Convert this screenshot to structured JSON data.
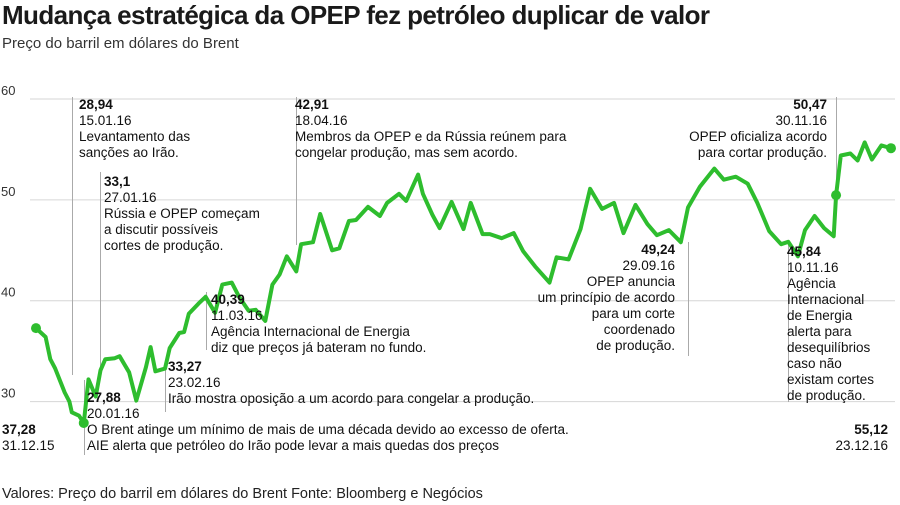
{
  "title": "Mudança estratégica da OPEP fez petróleo duplicar de valor",
  "subtitle": "Preço do barril em dólares do Brent",
  "footer": "Valores: Preço do barril em dólares do Brent Fonte: Bloomberg  e Negócios",
  "colors": {
    "line": "#2ebd2e",
    "grid": "#d6d6d6",
    "marker": "#aaaaaa",
    "text": "#111111"
  },
  "chart_data": {
    "type": "line",
    "title": "Mudança estratégica da OPEP fez petróleo duplicar de valor",
    "subtitle": "Preço do barril em dólares do Brent",
    "ylabel": "",
    "xlabel": "",
    "ylim": [
      25,
      60
    ],
    "yticks": [
      "30",
      "40",
      "50",
      "60"
    ],
    "xlim": [
      "2015-12-31",
      "2016-12-23"
    ],
    "grid": true,
    "series": [
      {
        "x": [
          "2015-12-31",
          "2016-01-04",
          "2016-01-06",
          "2016-01-08",
          "2016-01-12",
          "2016-01-14",
          "2016-01-15",
          "2016-01-18",
          "2016-01-20",
          "2016-01-22",
          "2016-01-25",
          "2016-01-27",
          "2016-01-29",
          "2016-02-02",
          "2016-02-04",
          "2016-02-08",
          "2016-02-11",
          "2016-02-15",
          "2016-02-17",
          "2016-02-19",
          "2016-02-23",
          "2016-02-25",
          "2016-02-29",
          "2016-03-02",
          "2016-03-04",
          "2016-03-08",
          "2016-03-11",
          "2016-03-15",
          "2016-03-18",
          "2016-03-22",
          "2016-03-25",
          "2016-03-29",
          "2016-04-01",
          "2016-04-05",
          "2016-04-08",
          "2016-04-11",
          "2016-04-14",
          "2016-04-18",
          "2016-04-20",
          "2016-04-25",
          "2016-04-28",
          "2016-05-03",
          "2016-05-06",
          "2016-05-10",
          "2016-05-13",
          "2016-05-18",
          "2016-05-23",
          "2016-05-26",
          "2016-05-31",
          "2016-06-03",
          "2016-06-08",
          "2016-06-10",
          "2016-06-14",
          "2016-06-17",
          "2016-06-22",
          "2016-06-27",
          "2016-06-30",
          "2016-07-05",
          "2016-07-08",
          "2016-07-13",
          "2016-07-18",
          "2016-07-22",
          "2016-07-27",
          "2016-08-02",
          "2016-08-05",
          "2016-08-10",
          "2016-08-15",
          "2016-08-19",
          "2016-08-24",
          "2016-08-29",
          "2016-09-02",
          "2016-09-07",
          "2016-09-12",
          "2016-09-16",
          "2016-09-21",
          "2016-09-26",
          "2016-09-29",
          "2016-10-04",
          "2016-10-10",
          "2016-10-14",
          "2016-10-19",
          "2016-10-24",
          "2016-10-28",
          "2016-11-02",
          "2016-11-07",
          "2016-11-10",
          "2016-11-14",
          "2016-11-17",
          "2016-11-21",
          "2016-11-25",
          "2016-11-29",
          "2016-11-30",
          "2016-12-02",
          "2016-12-06",
          "2016-12-09",
          "2016-12-12",
          "2016-12-15",
          "2016-12-19",
          "2016-12-23"
        ],
        "values": [
          37.28,
          36.4,
          34.2,
          33.3,
          30.9,
          30.0,
          28.94,
          28.6,
          27.88,
          32.2,
          30.5,
          33.1,
          34.2,
          34.3,
          34.5,
          32.9,
          30.1,
          33.4,
          35.4,
          33.0,
          33.27,
          35.3,
          36.8,
          36.9,
          38.7,
          39.7,
          40.39,
          38.8,
          41.6,
          41.8,
          40.4,
          39.0,
          39.1,
          38.0,
          41.6,
          42.6,
          44.4,
          42.91,
          45.6,
          45.8,
          48.6,
          45.0,
          45.2,
          47.9,
          48.0,
          49.3,
          48.4,
          49.7,
          50.6,
          49.9,
          52.5,
          50.6,
          48.5,
          47.2,
          49.8,
          47.1,
          49.7,
          46.6,
          46.6,
          46.2,
          46.7,
          44.9,
          43.4,
          41.8,
          44.3,
          44.1,
          47.1,
          51.1,
          49.1,
          49.7,
          46.7,
          49.5,
          47.6,
          46.5,
          47.0,
          45.8,
          49.24,
          51.3,
          53.1,
          52.0,
          52.3,
          51.6,
          49.7,
          46.9,
          45.6,
          45.84,
          44.4,
          47.0,
          48.4,
          47.2,
          46.4,
          50.47,
          54.4,
          54.6,
          53.9,
          55.7,
          54.0,
          55.4,
          55.12
        ]
      }
    ],
    "annotations": [
      {
        "value": "37,28",
        "date": "31.12.15",
        "lines": []
      },
      {
        "value": "28,94",
        "date": "15.01.16",
        "lines": [
          "Levantamento das",
          "sanções ao Irão."
        ]
      },
      {
        "value": "27,88",
        "date": "20.01.16",
        "lines": [
          "O Brent atinge um mínimo de mais de uma década devido ao excesso de oferta.",
          "AIE alerta que petróleo do Irão pode levar a mais quedas dos preços"
        ]
      },
      {
        "value": "33,1",
        "date": "27.01.16",
        "lines": [
          "Rússia e OPEP começam",
          "a discutir possíveis",
          "cortes de produção."
        ]
      },
      {
        "value": "33,27",
        "date": "23.02.16",
        "lines": [
          "Irão mostra oposição a um acordo para congelar a produção."
        ]
      },
      {
        "value": "40,39",
        "date": "11.03.16",
        "lines": [
          "Agência Internacional de Energia",
          "diz que preços já bateram no fundo."
        ]
      },
      {
        "value": "42,91",
        "date": "18.04.16",
        "lines": [
          "Membros da OPEP e da Rússia reúnem para",
          "congelar produção, mas sem acordo."
        ]
      },
      {
        "value": "49,24",
        "date": "29.09.16",
        "lines": [
          "OPEP anuncia",
          "um princípio de acordo",
          "para um corte",
          "coordenado",
          "de produção."
        ]
      },
      {
        "value": "50,47",
        "date": "30.11.16",
        "lines": [
          "OPEP oficializa acordo",
          "para cortar produção."
        ]
      },
      {
        "value": "45,84",
        "date": "10.11.16",
        "lines": [
          "Agência",
          "Internacional",
          "de Energia",
          "alerta para",
          "desequilíbrios",
          "caso não",
          "existam cortes",
          "de produção."
        ]
      },
      {
        "value": "55,12",
        "date": "23.12.16",
        "lines": []
      }
    ]
  }
}
